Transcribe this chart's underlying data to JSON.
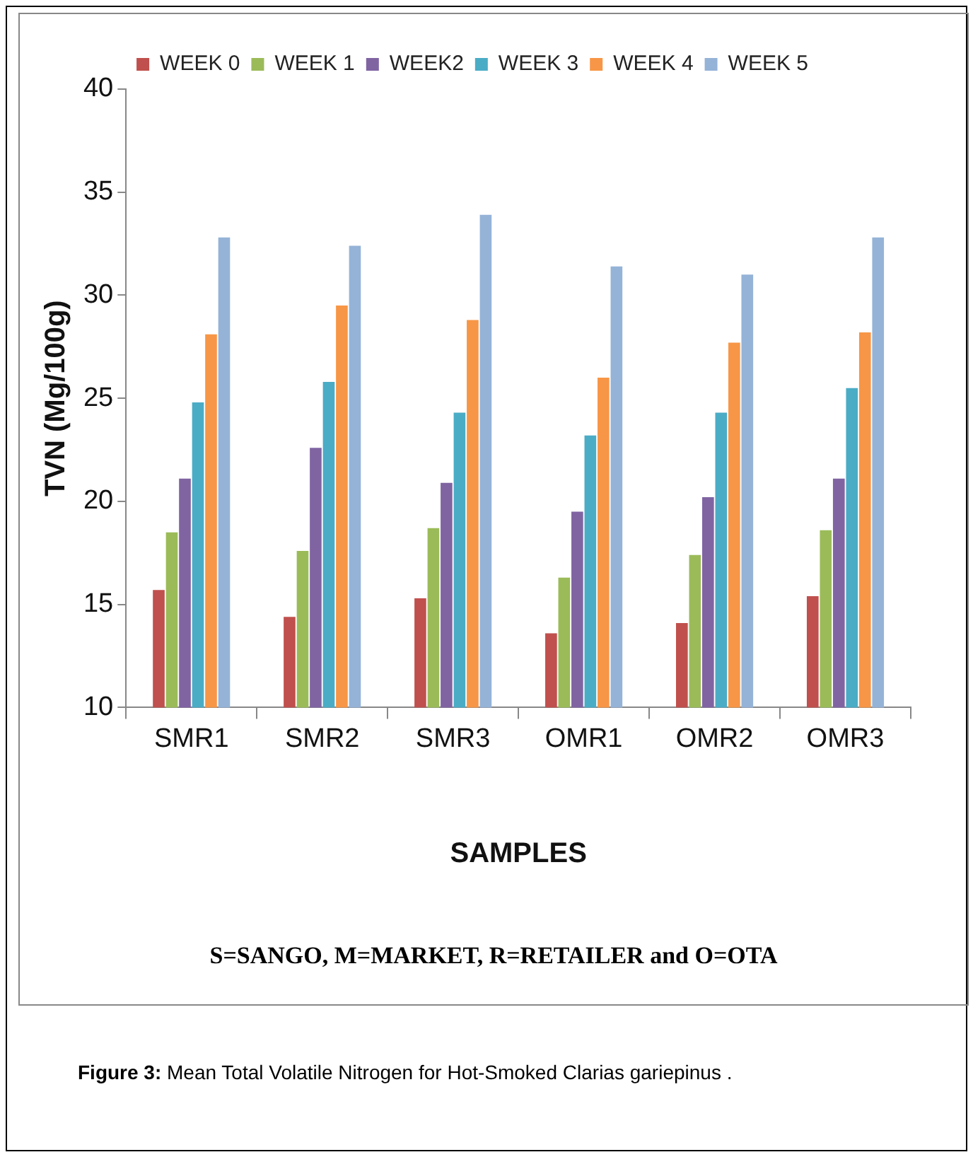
{
  "chart_data": {
    "type": "bar",
    "xlabel": "SAMPLES",
    "ylabel": "TVN (Mg/100g)",
    "categories": [
      "SMR1",
      "SMR2",
      "SMR3",
      "OMR1",
      "OMR2",
      "OMR3"
    ],
    "series": [
      {
        "name": "WEEK 0",
        "color": "#c0504d",
        "values": [
          15.7,
          14.4,
          15.3,
          13.6,
          14.1,
          15.4
        ]
      },
      {
        "name": "WEEK 1",
        "color": "#9bbb59",
        "values": [
          18.5,
          17.6,
          18.7,
          16.3,
          17.4,
          18.6
        ]
      },
      {
        "name": "WEEK2",
        "color": "#8064a2",
        "values": [
          21.1,
          22.6,
          20.9,
          19.5,
          20.2,
          21.1
        ]
      },
      {
        "name": "WEEK 3",
        "color": "#4bacc6",
        "values": [
          24.8,
          25.8,
          24.3,
          23.2,
          24.3,
          25.5
        ]
      },
      {
        "name": "WEEK 4",
        "color": "#f79646",
        "values": [
          28.1,
          29.5,
          28.8,
          26.0,
          27.7,
          28.2
        ]
      },
      {
        "name": "WEEK 5",
        "color": "#95b3d7",
        "values": [
          32.8,
          32.4,
          33.9,
          31.4,
          31.0,
          32.8
        ]
      }
    ],
    "ylim": [
      10,
      40
    ],
    "yticks": [
      10,
      15,
      20,
      25,
      30,
      35,
      40
    ],
    "grid": false,
    "legend": "top",
    "annotations": [
      "S=SANGO, M=MARKET, R=RETAILER and O=OTA",
      "Figure 3: Mean Total Volatile Nitrogen for Hot-Smoked Clarias gariepinus ."
    ]
  }
}
